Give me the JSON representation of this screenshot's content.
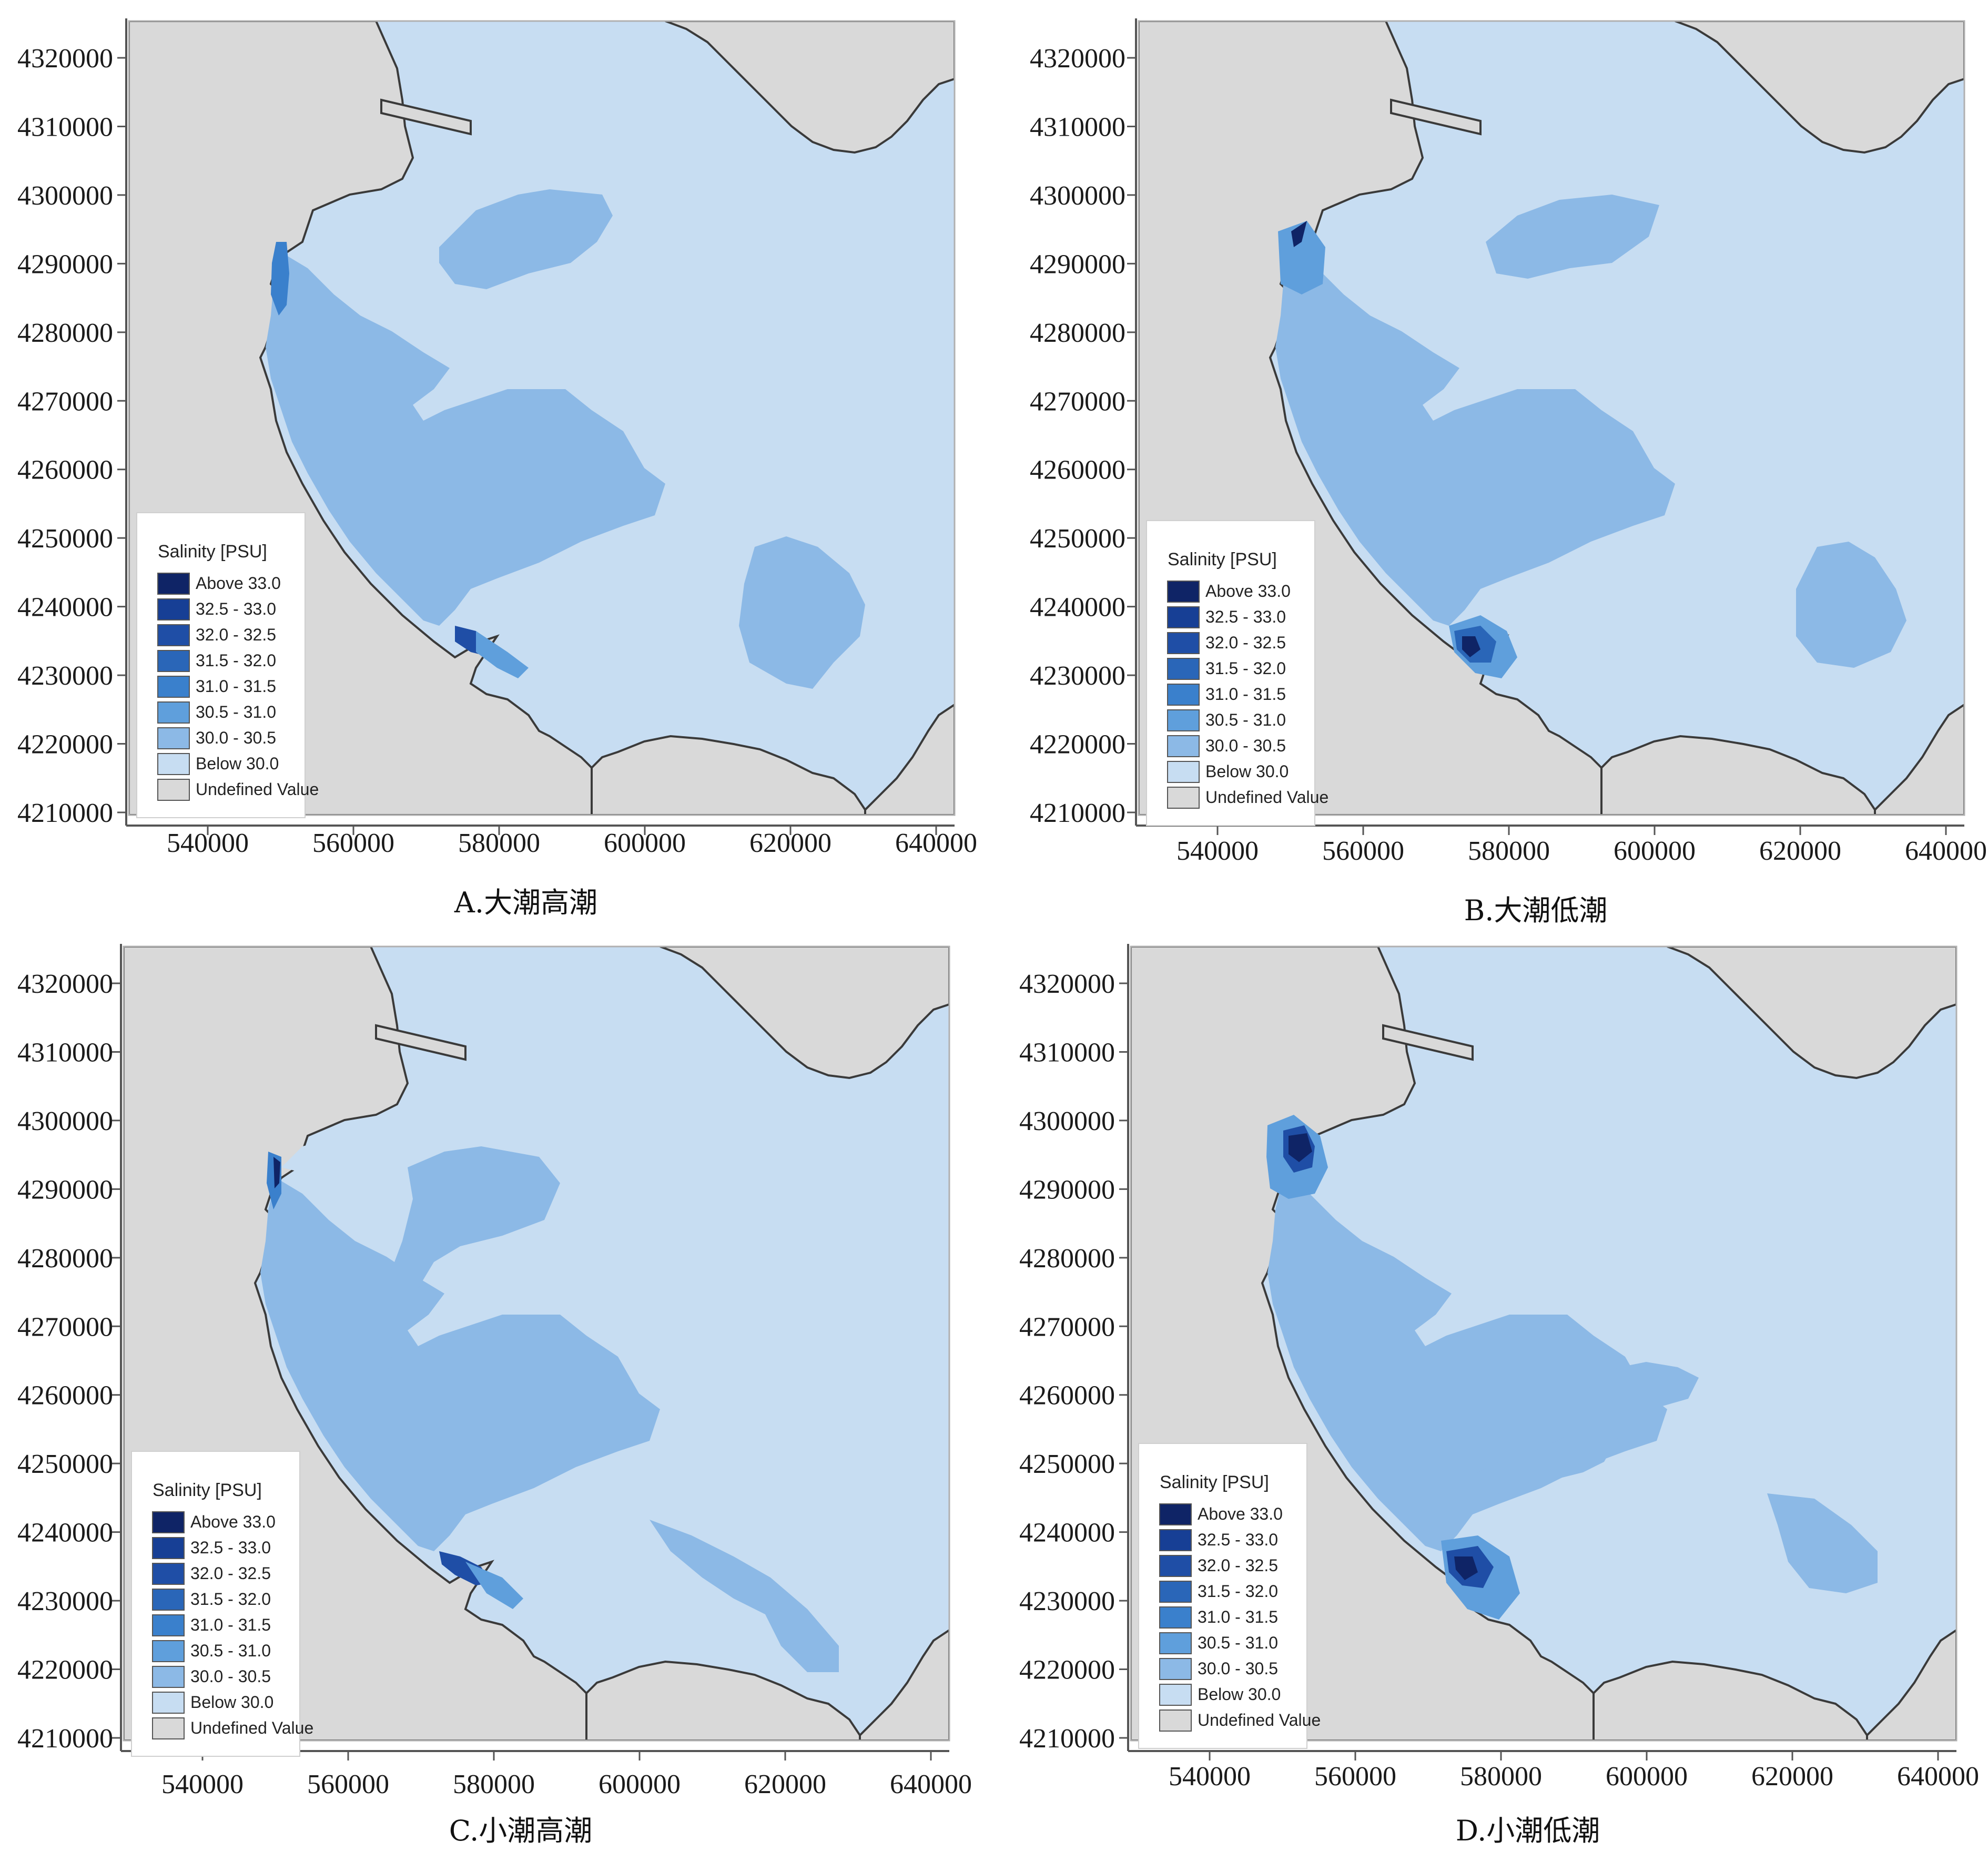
{
  "figure": {
    "colors": {
      "land": "#d9d9d9",
      "coast": "#3a3a3a",
      "below30": "#c7ddf2",
      "c30_305": "#8cb9e6",
      "c305_31": "#5f9fdc",
      "c31_315": "#3a80cc",
      "c315_32": "#2a66b8",
      "c32_325": "#1f4ea6",
      "c325_33": "#173f95",
      "above33": "#0f2466",
      "undefined": "#d9d9d9"
    },
    "legend": {
      "title": "Salinity [PSU]",
      "items": [
        {
          "label": "Above 33.0",
          "color_key": "above33"
        },
        {
          "label": "32.5 - 33.0",
          "color_key": "c325_33"
        },
        {
          "label": "32.0 - 32.5",
          "color_key": "c32_325"
        },
        {
          "label": "31.5 - 32.0",
          "color_key": "c315_32"
        },
        {
          "label": "31.0 - 31.5",
          "color_key": "c31_315"
        },
        {
          "label": "30.5 - 31.0",
          "color_key": "c305_31"
        },
        {
          "label": "30.0 - 30.5",
          "color_key": "c30_305"
        },
        {
          "label": "Below 30.0",
          "color_key": "below30"
        },
        {
          "label": "Undefined Value",
          "color_key": "undefined"
        }
      ]
    },
    "y_ticks": [
      "4320000",
      "4310000",
      "4300000",
      "4290000",
      "4280000",
      "4270000",
      "4260000",
      "4250000",
      "4240000",
      "4230000",
      "4220000",
      "4210000"
    ],
    "x_ticks": [
      "540000",
      "560000",
      "580000",
      "600000",
      "620000",
      "640000"
    ],
    "panels": [
      {
        "id": "A",
        "caption": "A.大潮高潮"
      },
      {
        "id": "B",
        "caption": "B.大潮低潮"
      },
      {
        "id": "C",
        "caption": "C.小潮高潮"
      },
      {
        "id": "D",
        "caption": "D.小潮低潮"
      }
    ]
  }
}
